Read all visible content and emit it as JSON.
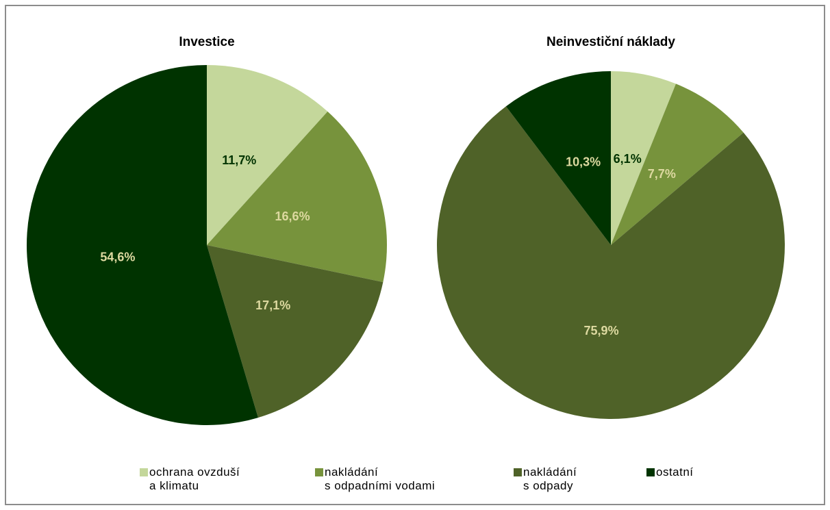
{
  "chart_data": [
    {
      "type": "pie",
      "title": "Investice",
      "categories": [
        "ochrana ovzduší\na klimatu",
        "nakládání\ns odpadními vodami",
        "nakládání\ns odpady",
        "ostatní"
      ],
      "colors": [
        "#c4d79b",
        "#77933c",
        "#4f6228",
        "#003300"
      ],
      "values": [
        11.7,
        16.6,
        17.1,
        54.6
      ],
      "value_labels": [
        "11,7%",
        "16,6%",
        "17,1%",
        "54,6%"
      ]
    },
    {
      "type": "pie",
      "title": "Neinvestiční náklady",
      "values": [
        6.1,
        7.7,
        75.9,
        10.3
      ],
      "value_labels": [
        "6,1%",
        "7,7%",
        "75,9%",
        "10,3%"
      ]
    }
  ]
}
